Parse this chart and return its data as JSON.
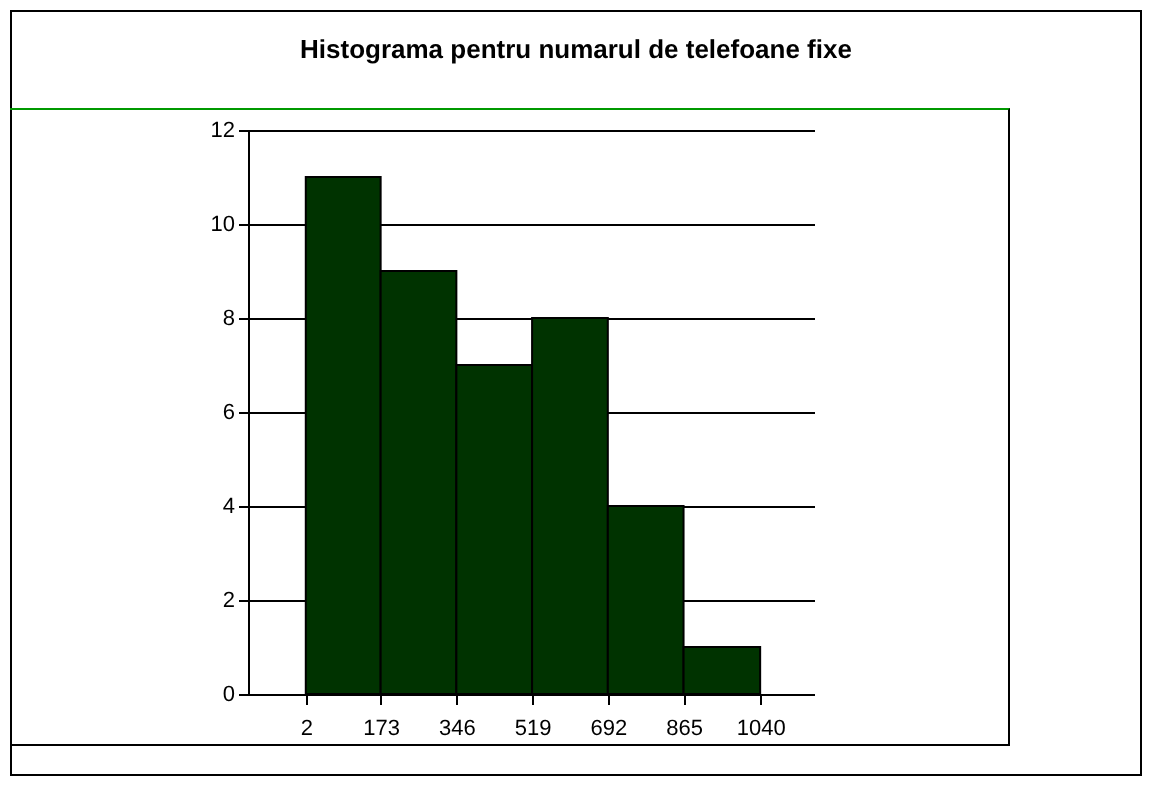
{
  "chart_data": {
    "type": "histogram",
    "title": "Histograma pentru numarul de telefoane fixe",
    "bins": [
      2,
      173,
      346,
      519,
      692,
      865,
      1040
    ],
    "values": [
      11,
      9,
      7,
      8,
      4,
      1
    ],
    "color": "#003300",
    "xlim": [
      -130,
      1163
    ],
    "xticks": [
      2,
      173,
      346,
      519,
      692,
      865,
      1040
    ],
    "ylim": [
      0,
      12
    ],
    "yticks": [
      0,
      2,
      4,
      6,
      8,
      10,
      12
    ],
    "grid": "y"
  }
}
